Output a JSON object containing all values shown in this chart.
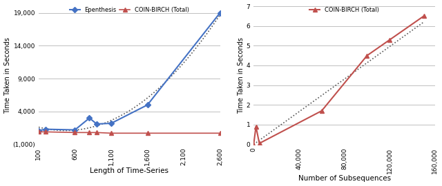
{
  "left": {
    "epenthesis_x": [
      100,
      200,
      600,
      800,
      900,
      1100,
      1600,
      2600
    ],
    "epenthesis_y": [
      1100,
      1300,
      1200,
      3000,
      2100,
      2200,
      5000,
      19000
    ],
    "coin_x": [
      100,
      200,
      600,
      800,
      900,
      1100,
      1600,
      2600
    ],
    "coin_y": [
      900,
      900,
      800,
      800,
      800,
      700,
      700,
      700
    ],
    "xlabel": "Length of Time-Series",
    "ylabel": "Time Taken in Seconds",
    "ylim": [
      -1000,
      20000
    ],
    "yticks": [
      -1000,
      4000,
      9000,
      14000,
      19000
    ],
    "ytick_labels": [
      "(1,000)",
      "4,000",
      "9,000",
      "14,000",
      "19,000"
    ],
    "xticks": [
      100,
      600,
      1100,
      1600,
      2100,
      2600
    ],
    "xtick_labels": [
      "100",
      "600",
      "1,100",
      "1,600",
      "2,100",
      "2,600"
    ],
    "legend_epenthesis": "Epenthesis",
    "legend_coin": "COIN-BIRCH (Total)",
    "epenthesis_color": "#4472C4",
    "coin_color": "#C0504D",
    "bg_color": "#ffffff",
    "grid_color": "#c0c0c0"
  },
  "right": {
    "coin_x": [
      0,
      2000,
      5000,
      60000,
      100000,
      120000,
      150000
    ],
    "coin_y": [
      0.0,
      0.9,
      0.05,
      1.7,
      4.5,
      5.3,
      6.5
    ],
    "trend_x": [
      0,
      150000
    ],
    "trend_y": [
      0,
      6.2
    ],
    "xlabel": "Number of Subsequences",
    "ylabel": "Time Taken in Seconds",
    "ylim": [
      0,
      7
    ],
    "yticks": [
      0,
      1,
      2,
      3,
      4,
      5,
      6,
      7
    ],
    "xticks": [
      0,
      40000,
      80000,
      120000,
      160000
    ],
    "xtick_labels": [
      "0",
      "40,000",
      "80,000",
      "120,000",
      "160,000"
    ],
    "legend_coin": "COIN-BIRCH (Total)",
    "coin_color": "#C0504D",
    "bg_color": "#ffffff",
    "grid_color": "#c0c0c0"
  }
}
